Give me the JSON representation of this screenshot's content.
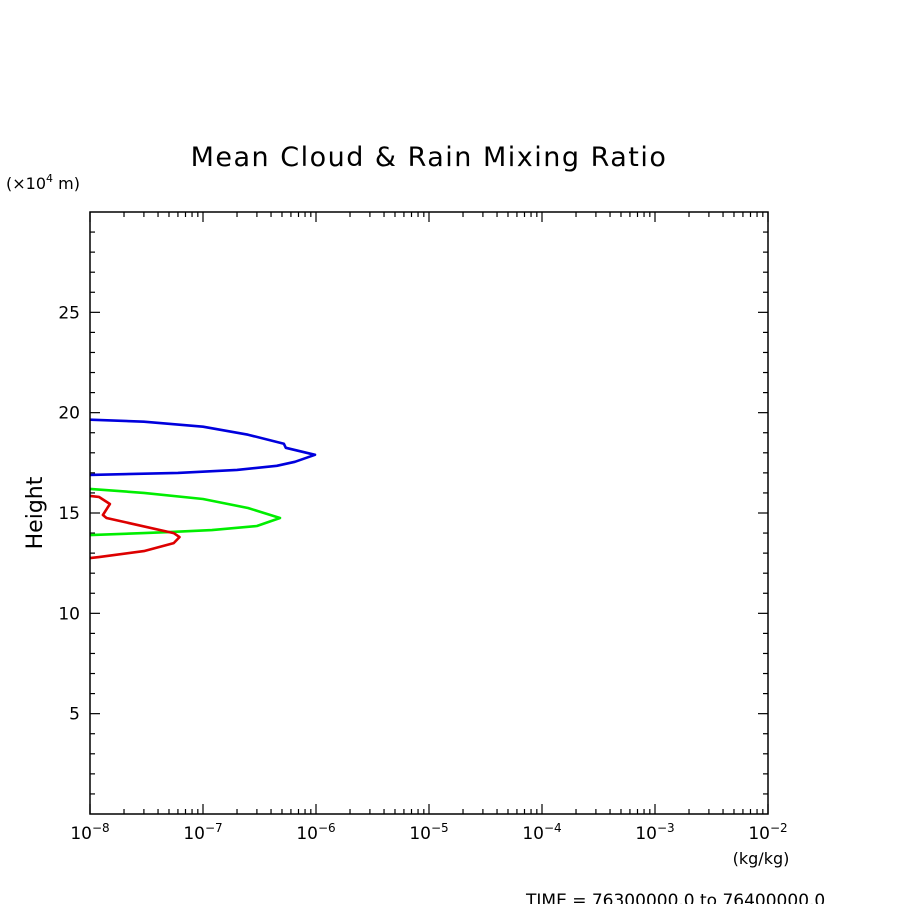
{
  "chart_data": {
    "type": "line",
    "title": "Mean Cloud & Rain Mixing Ratio",
    "xlabel": "(kg/kg)",
    "ylabel": "Height",
    "yunit_prefix": "(×10",
    "yunit_exp": "4",
    "yunit_suffix": " m)",
    "xscale": "log",
    "xlim": [
      1e-08,
      0.01
    ],
    "ylim": [
      0,
      30
    ],
    "x_ticks": [
      {
        "v": 1e-08,
        "exp": "−8"
      },
      {
        "v": 1e-07,
        "exp": "−7"
      },
      {
        "v": 1e-06,
        "exp": "−6"
      },
      {
        "v": 1e-05,
        "exp": "−5"
      },
      {
        "v": 0.0001,
        "exp": "−4"
      },
      {
        "v": 0.001,
        "exp": "−3"
      },
      {
        "v": 0.01,
        "exp": "−2"
      }
    ],
    "x_tick_base": "10",
    "y_ticks": [
      5,
      10,
      15,
      20,
      25
    ],
    "grid": false,
    "series": [
      {
        "color": "#0000dd",
        "points": [
          [
            1e-08,
            19.65
          ],
          [
            3e-08,
            19.55
          ],
          [
            1e-07,
            19.3
          ],
          [
            2.5e-07,
            18.9
          ],
          [
            5.2e-07,
            18.45
          ],
          [
            5.4e-07,
            18.25
          ],
          [
            9.8e-07,
            17.9
          ],
          [
            6.5e-07,
            17.55
          ],
          [
            4.5e-07,
            17.35
          ],
          [
            2e-07,
            17.15
          ],
          [
            6e-08,
            17.0
          ],
          [
            1e-08,
            16.9
          ]
        ]
      },
      {
        "color": "#00ee00",
        "points": [
          [
            1e-08,
            16.2
          ],
          [
            3e-08,
            16.0
          ],
          [
            1e-07,
            15.7
          ],
          [
            2.5e-07,
            15.25
          ],
          [
            4.8e-07,
            14.75
          ],
          [
            3e-07,
            14.35
          ],
          [
            1.2e-07,
            14.15
          ],
          [
            5e-08,
            14.05
          ],
          [
            3e-08,
            14.0
          ],
          [
            1e-08,
            13.9
          ]
        ]
      },
      {
        "color": "#dd0000",
        "points": [
          [
            1e-08,
            15.85
          ],
          [
            1.2e-08,
            15.8
          ],
          [
            1.5e-08,
            15.45
          ],
          [
            1.3e-08,
            14.9
          ],
          [
            1.4e-08,
            14.75
          ],
          [
            5.5e-08,
            14.0
          ],
          [
            6.2e-08,
            13.8
          ],
          [
            5.5e-08,
            13.5
          ],
          [
            3e-08,
            13.1
          ],
          [
            1.2e-08,
            12.8
          ],
          [
            1e-08,
            12.75
          ]
        ]
      }
    ],
    "footer": "TIME = 76300000.0 to 76400000.0"
  }
}
